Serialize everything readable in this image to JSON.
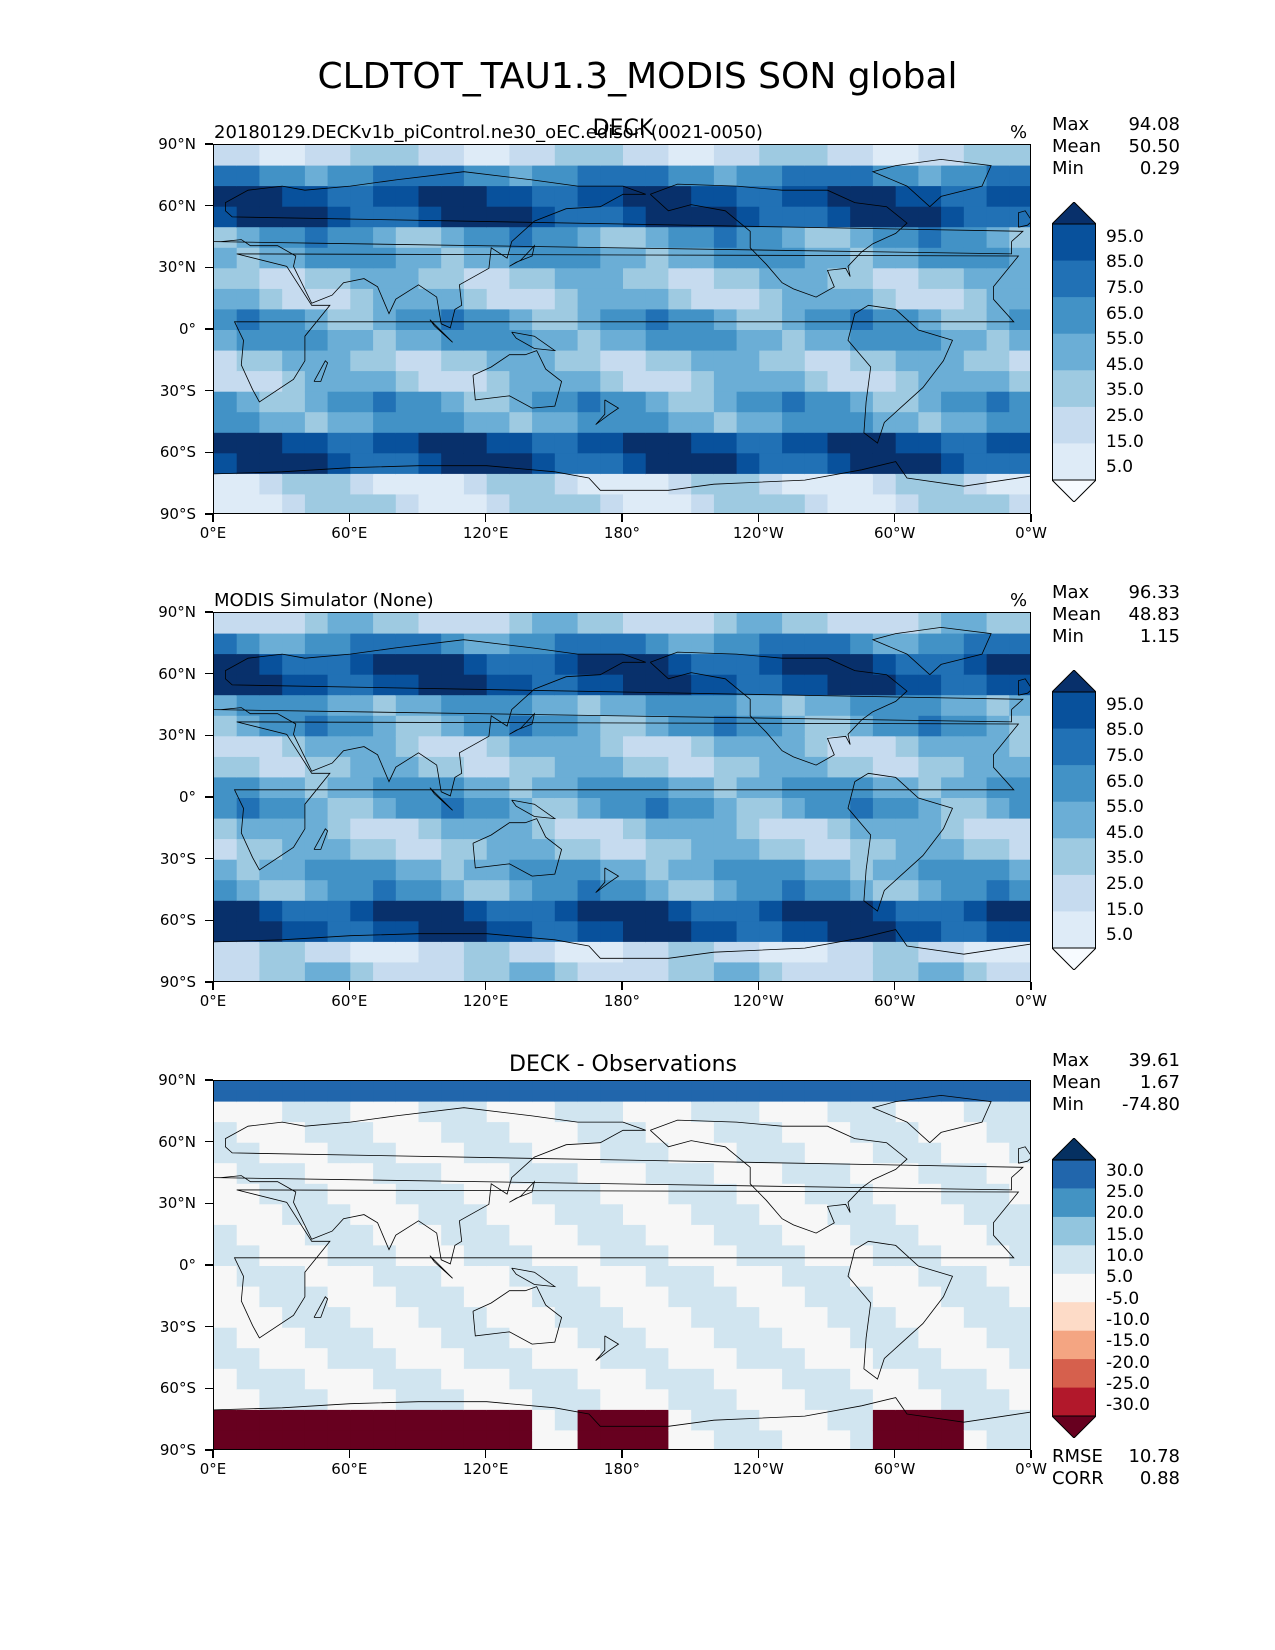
{
  "figure_title": "CLDTOT_TAU1.3_MODIS SON global",
  "colors": {
    "blues": [
      "#f7fbff",
      "#deebf7",
      "#c6dbef",
      "#9ecae1",
      "#6baed6",
      "#4292c6",
      "#2171b5",
      "#08519c",
      "#08306b"
    ],
    "diff": [
      "#67001f",
      "#b2182b",
      "#d6604d",
      "#f4a582",
      "#fddbc7",
      "#f7f7f7",
      "#d1e5f0",
      "#92c5de",
      "#4393c3",
      "#2166ac",
      "#053061"
    ],
    "coast": "#000000"
  },
  "axes": {
    "yticks": [
      "90°N",
      "60°N",
      "30°N",
      "0°",
      "30°S",
      "60°S",
      "90°S"
    ],
    "xticks": [
      "0°E",
      "60°E",
      "120°E",
      "180°",
      "120°W",
      "60°W",
      "0°W"
    ]
  },
  "chart_data": [
    {
      "type": "heatmap",
      "title": "DECK",
      "subtitle": "20180129.DECKv1b_piControl.ne30_oEC.edison (0021-0050)",
      "units": "%",
      "stats": {
        "Max": "94.08",
        "Mean": "50.50",
        "Min": "0.29"
      },
      "colorbar_levels": [
        "95.0",
        "85.0",
        "75.0",
        "65.0",
        "55.0",
        "45.0",
        "35.0",
        "25.0",
        "15.0",
        "5.0"
      ],
      "xlim": [
        0,
        360
      ],
      "ylim": [
        -90,
        90
      ]
    },
    {
      "type": "heatmap",
      "title": "",
      "subtitle": "MODIS Simulator (None)",
      "units": "%",
      "stats": {
        "Max": "96.33",
        "Mean": "48.83",
        "Min": "1.15"
      },
      "colorbar_levels": [
        "95.0",
        "85.0",
        "75.0",
        "65.0",
        "55.0",
        "45.0",
        "35.0",
        "25.0",
        "15.0",
        "5.0"
      ],
      "xlim": [
        0,
        360
      ],
      "ylim": [
        -90,
        90
      ]
    },
    {
      "type": "heatmap",
      "title": "DECK - Observations",
      "subtitle": "",
      "units": "",
      "stats": {
        "Max": "39.61",
        "Mean": "1.67",
        "Min": "-74.80"
      },
      "colorbar_levels": [
        "30.0",
        "25.0",
        "20.0",
        "15.0",
        "10.0",
        "5.0",
        "-5.0",
        "-10.0",
        "-15.0",
        "-20.0",
        "-25.0",
        "-30.0"
      ],
      "extra_stats": {
        "RMSE": "10.78",
        "CORR": "0.88"
      },
      "xlim": [
        0,
        360
      ],
      "ylim": [
        -90,
        90
      ]
    }
  ]
}
